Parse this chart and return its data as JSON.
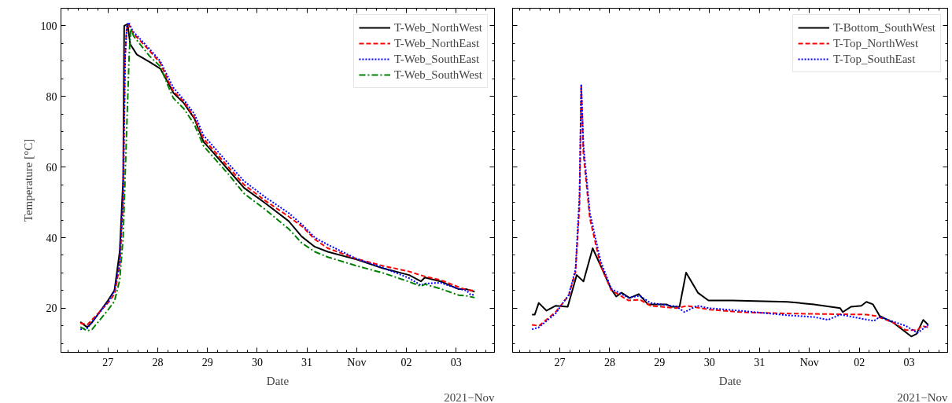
{
  "chart_data": [
    {
      "type": "line",
      "xlabel": "Date",
      "ylabel": "Temperature [°C]",
      "annotations": [
        "2021−Nov"
      ],
      "xlim": [
        "2021-10-26T01:20",
        "2021-11-03T18:30"
      ],
      "ylim": [
        7.5,
        105
      ],
      "xticks": [
        {
          "value": "2021-10-27",
          "label": "27"
        },
        {
          "value": "2021-10-28",
          "label": "28"
        },
        {
          "value": "2021-10-29",
          "label": "29"
        },
        {
          "value": "2021-10-30",
          "label": "30"
        },
        {
          "value": "2021-10-31",
          "label": "31"
        },
        {
          "value": "2021-11-01",
          "label": "Nov"
        },
        {
          "value": "2021-11-02",
          "label": "02"
        },
        {
          "value": "2021-11-03",
          "label": "03"
        }
      ],
      "yticks": [
        20,
        40,
        60,
        80,
        100
      ],
      "legend": "top right",
      "grid": false,
      "series": [
        {
          "name": "T-Web_NorthWest",
          "color": "#000000",
          "line_style": "solid",
          "x": [
            "2021-10-26T10:40",
            "2021-10-26T14:00",
            "2021-10-26T16:20",
            "2021-10-27T00:00",
            "2021-10-27T03:10",
            "2021-10-27T05:40",
            "2021-10-27T07:20",
            "2021-10-27T07:50",
            "2021-10-27T09:30",
            "2021-10-27T10:45",
            "2021-10-27T13:55",
            "2021-10-27T20:15",
            "2021-10-28T01:15",
            "2021-10-28T05:00",
            "2021-10-28T07:35",
            "2021-10-28T12:40",
            "2021-10-28T17:45",
            "2021-10-28T22:05",
            "2021-10-29T02:30",
            "2021-10-29T10:05",
            "2021-10-29T17:40",
            "2021-10-30T03:50",
            "2021-10-30T15:10",
            "2021-10-30T21:30",
            "2021-10-31T03:50",
            "2021-10-31T10:05",
            "2021-11-01T00:00",
            "2021-11-01T12:40",
            "2021-11-02T01:20",
            "2021-11-02T07:00",
            "2021-11-02T08:55",
            "2021-11-02T16:30",
            "2021-11-03T01:15",
            "2021-11-03T05:00",
            "2021-11-03T08:55"
          ],
          "values": [
            16.1,
            14.6,
            16,
            22.2,
            25.1,
            36,
            56.4,
            100,
            100.5,
            94.8,
            91.9,
            89.7,
            87.9,
            83.9,
            81,
            78.1,
            73.7,
            67.2,
            64.3,
            59.2,
            54.1,
            49.8,
            44.7,
            40.3,
            37.4,
            36,
            33.8,
            31.3,
            29.4,
            27.6,
            28.7,
            27.6,
            25.4,
            25.4,
            24.7
          ]
        },
        {
          "name": "T-Web_NorthEast",
          "color": "#ff0000",
          "line_style": "dashed",
          "x": [
            "2021-10-26T10:40",
            "2021-10-26T14:00",
            "2021-10-27T00:00",
            "2021-10-27T03:10",
            "2021-10-27T05:40",
            "2021-10-27T07:20",
            "2021-10-27T08:10",
            "2021-10-27T09:00",
            "2021-10-27T10:00",
            "2021-10-27T12:00",
            "2021-10-27T20:00",
            "2021-10-28T01:15",
            "2021-10-28T05:00",
            "2021-10-28T07:35",
            "2021-10-28T12:40",
            "2021-10-28T17:45",
            "2021-10-28T22:05",
            "2021-10-29T10:05",
            "2021-10-29T17:40",
            "2021-10-30T03:50",
            "2021-10-30T15:10",
            "2021-10-30T22:00",
            "2021-10-31T03:50",
            "2021-10-31T10:05",
            "2021-11-01T00:00",
            "2021-11-01T12:40",
            "2021-11-02T01:20",
            "2021-11-02T08:55",
            "2021-11-02T16:30",
            "2021-11-03T01:15",
            "2021-11-03T05:00",
            "2021-11-03T08:55"
          ],
          "values": [
            15.8,
            15.3,
            21.5,
            24,
            32,
            50,
            90,
            99,
            100.5,
            98,
            93,
            89.5,
            84.5,
            81.5,
            78.5,
            74,
            68,
            60,
            55,
            50.5,
            46,
            43,
            39.5,
            37,
            34,
            32,
            30.4,
            29,
            28,
            26,
            25.2,
            25
          ]
        },
        {
          "name": "T-Web_SouthEast",
          "color": "#0000ff",
          "line_style": "dotted",
          "x": [
            "2021-10-26T10:40",
            "2021-10-26T14:00",
            "2021-10-27T00:00",
            "2021-10-27T03:10",
            "2021-10-27T05:40",
            "2021-10-27T07:20",
            "2021-10-27T08:20",
            "2021-10-27T09:10",
            "2021-10-27T10:00",
            "2021-10-27T12:00",
            "2021-10-27T20:00",
            "2021-10-28T01:15",
            "2021-10-28T05:00",
            "2021-10-28T07:35",
            "2021-10-28T12:40",
            "2021-10-28T17:45",
            "2021-10-28T22:05",
            "2021-10-29T10:05",
            "2021-10-29T17:40",
            "2021-10-30T03:50",
            "2021-10-30T15:10",
            "2021-10-30T22:00",
            "2021-10-31T03:50",
            "2021-10-31T10:05",
            "2021-11-01T00:00",
            "2021-11-01T12:40",
            "2021-11-02T01:20",
            "2021-11-02T07:00",
            "2021-11-02T08:55",
            "2021-11-02T16:30",
            "2021-11-03T01:15",
            "2021-11-03T05:00",
            "2021-11-03T07:00",
            "2021-11-03T08:55"
          ],
          "values": [
            14,
            14.3,
            21.8,
            25,
            33,
            52,
            92,
            100,
            101,
            98.5,
            93.5,
            90,
            85.5,
            82.5,
            79,
            75,
            69,
            61,
            56,
            51.5,
            47,
            43.5,
            40,
            38,
            34,
            31.5,
            28.5,
            26.5,
            27,
            27.2,
            25.5,
            25,
            23.8,
            23.8
          ]
        },
        {
          "name": "T-Web_SouthWest",
          "color": "#008000",
          "line_style": "dashdot",
          "x": [
            "2021-10-26T10:40",
            "2021-10-26T14:00",
            "2021-10-26T16:20",
            "2021-10-27T00:00",
            "2021-10-27T03:10",
            "2021-10-27T05:40",
            "2021-10-27T07:20",
            "2021-10-27T09:00",
            "2021-10-27T10:15",
            "2021-10-27T11:00",
            "2021-10-27T12:30",
            "2021-10-27T20:00",
            "2021-10-28T01:15",
            "2021-10-28T05:00",
            "2021-10-28T07:35",
            "2021-10-28T12:40",
            "2021-10-28T17:45",
            "2021-10-28T22:05",
            "2021-10-29T10:05",
            "2021-10-29T17:40",
            "2021-10-30T03:50",
            "2021-10-30T15:10",
            "2021-10-30T21:30",
            "2021-10-31T03:50",
            "2021-10-31T10:05",
            "2021-11-01T00:00",
            "2021-11-01T12:40",
            "2021-11-02T01:20",
            "2021-11-02T07:00",
            "2021-11-02T08:55",
            "2021-11-02T16:30",
            "2021-11-03T01:15",
            "2021-11-03T05:00",
            "2021-11-03T08:55"
          ],
          "values": [
            14.7,
            13.6,
            14,
            19.5,
            22,
            28,
            40,
            70,
            92,
            99.2,
            97,
            91.5,
            88.5,
            83,
            79.5,
            76.5,
            72,
            66,
            58,
            52.5,
            48,
            42.5,
            38.5,
            36,
            34.5,
            32,
            30,
            27.5,
            26.2,
            26.8,
            25.5,
            23.7,
            23.5,
            23
          ]
        }
      ]
    },
    {
      "type": "line",
      "xlabel": "Date",
      "annotations": [
        "2021−Nov"
      ],
      "xlim": [
        "2021-10-26T01:20",
        "2021-11-03T18:30"
      ],
      "ylim": [
        7.5,
        105
      ],
      "xticks": [
        {
          "value": "2021-10-27",
          "label": "27"
        },
        {
          "value": "2021-10-28",
          "label": "28"
        },
        {
          "value": "2021-10-29",
          "label": "29"
        },
        {
          "value": "2021-10-30",
          "label": "30"
        },
        {
          "value": "2021-10-31",
          "label": "31"
        },
        {
          "value": "2021-11-01",
          "label": "Nov"
        },
        {
          "value": "2021-11-02",
          "label": "02"
        },
        {
          "value": "2021-11-03",
          "label": "03"
        }
      ],
      "yticks": [
        20,
        40,
        60,
        80,
        100
      ],
      "tick_labels": "x",
      "legend": "top right",
      "grid": false,
      "series": [
        {
          "name": "T-Bottom_SouthWest",
          "color": "#000000",
          "line_style": "solid",
          "x": [
            "2021-10-26T10:40",
            "2021-10-26T12:00",
            "2021-10-26T13:55",
            "2021-10-26T17:40",
            "2021-10-26T22:05",
            "2021-10-27T03:50",
            "2021-10-27T08:10",
            "2021-10-27T11:25",
            "2021-10-27T15:50",
            "2021-10-27T20:15",
            "2021-10-28T00:45",
            "2021-10-28T03:10",
            "2021-10-28T05:45",
            "2021-10-28T09:35",
            "2021-10-28T14:00",
            "2021-10-28T18:25",
            "2021-10-29T03:20",
            "2021-10-29T05:45",
            "2021-10-29T09:35",
            "2021-10-29T12:45",
            "2021-10-29T18:25",
            "2021-10-29T23:30",
            "2021-10-30T10:55",
            "2021-10-31T13:30",
            "2021-11-01T02:10",
            "2021-11-01T14:50",
            "2021-11-01T16:05",
            "2021-11-01T19:55",
            "2021-11-02T01:00",
            "2021-11-02T03:25",
            "2021-11-02T06:35",
            "2021-11-02T09:50",
            "2021-11-02T16:05",
            "2021-11-03T01:00",
            "2021-11-03T03:30",
            "2021-11-03T06:45",
            "2021-11-03T09:10"
          ],
          "values": [
            18.2,
            18.2,
            21.5,
            19.3,
            20.7,
            20.4,
            29.4,
            27.6,
            37,
            31.3,
            25.4,
            23.3,
            24.4,
            22.9,
            24,
            21.1,
            21.1,
            20.4,
            20.4,
            30.1,
            24.4,
            22.2,
            22.2,
            21.8,
            21.1,
            20,
            18.9,
            20.4,
            20.7,
            21.8,
            21.1,
            17.8,
            16,
            12,
            12.7,
            16.7,
            15.3
          ]
        },
        {
          "name": "T-Top_NorthWest",
          "color": "#ff0000",
          "line_style": "dashed",
          "x": [
            "2021-10-26T10:40",
            "2021-10-26T14:00",
            "2021-10-26T22:00",
            "2021-10-27T04:20",
            "2021-10-27T07:35",
            "2021-10-27T09:30",
            "2021-10-27T10:20",
            "2021-10-27T11:25",
            "2021-10-27T14:30",
            "2021-10-27T19:35",
            "2021-10-28T00:45",
            "2021-10-28T09:00",
            "2021-10-28T14:35",
            "2021-10-28T19:40",
            "2021-10-29T08:00",
            "2021-10-29T13:15",
            "2021-10-30T00:00",
            "2021-10-30T14:40",
            "2021-10-31T13:30",
            "2021-11-02T03:25",
            "2021-11-02T08:00",
            "2021-11-02T16:05",
            "2021-11-02T22:20",
            "2021-11-03T04:00",
            "2021-11-03T06:00",
            "2021-11-03T09:10"
          ],
          "values": [
            15.3,
            15,
            18.9,
            23.6,
            30.2,
            49,
            83.2,
            63.6,
            45.4,
            32.3,
            25.1,
            22.2,
            22.4,
            20.7,
            20,
            20.7,
            19.6,
            18.9,
            18.5,
            18.2,
            17.8,
            16,
            13.8,
            13.8,
            15,
            14.6
          ]
        },
        {
          "name": "T-Top_SouthEast",
          "color": "#0000ff",
          "line_style": "dotted",
          "x": [
            "2021-10-26T10:40",
            "2021-10-26T14:00",
            "2021-10-26T22:00",
            "2021-10-27T04:20",
            "2021-10-27T07:35",
            "2021-10-27T09:30",
            "2021-10-27T10:20",
            "2021-10-27T11:25",
            "2021-10-27T14:30",
            "2021-10-27T19:35",
            "2021-10-28T00:45",
            "2021-10-28T09:00",
            "2021-10-28T14:35",
            "2021-10-28T19:40",
            "2021-10-29T08:00",
            "2021-10-29T12:00",
            "2021-10-29T18:00",
            "2021-10-30T00:00",
            "2021-10-30T14:40",
            "2021-10-31T13:30",
            "2021-11-01T02:10",
            "2021-11-01T09:00",
            "2021-11-01T14:50",
            "2021-11-02T07:00",
            "2021-11-02T09:50",
            "2021-11-02T22:20",
            "2021-11-03T04:00",
            "2021-11-03T09:10"
          ],
          "values": [
            14,
            14.6,
            18.5,
            23.8,
            31,
            52,
            83.5,
            66,
            47,
            33.5,
            25.5,
            23,
            23.5,
            21.5,
            20.5,
            18.9,
            20.7,
            20,
            19.3,
            18,
            17.5,
            16.7,
            18.2,
            16.4,
            17.5,
            15,
            13,
            15.3
          ]
        }
      ]
    }
  ]
}
